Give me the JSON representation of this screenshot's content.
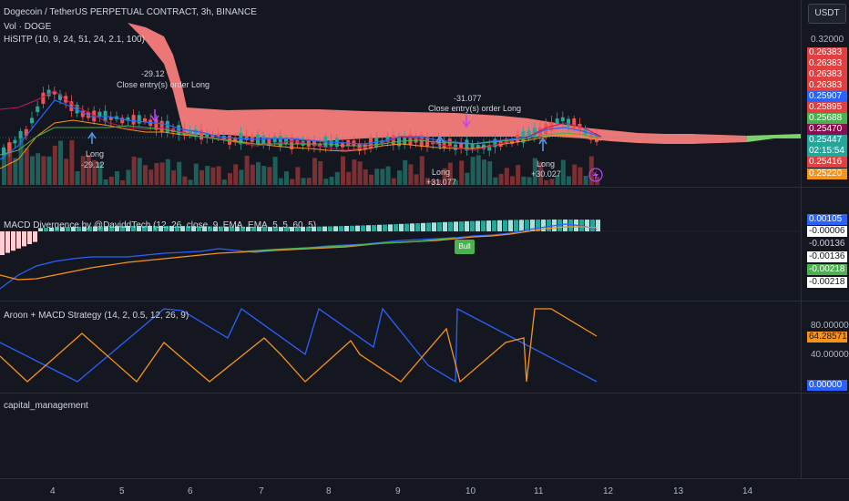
{
  "header": {
    "symbol_title": "Dogecoin / TetherUS PERPETUAL CONTRACT, 3h, BINANCE",
    "vol_label": "Vol · DOGE",
    "hsitp_label": "HiSITP (10, 9, 24, 51, 24, 2.1, 100)",
    "currency_button": "USDT"
  },
  "price_axis": {
    "top_tick": "0.32000",
    "tags": [
      {
        "text": "0.26383",
        "color": "#e04040"
      },
      {
        "text": "0.26383",
        "color": "#e04040"
      },
      {
        "text": "0.26383",
        "color": "#e04040"
      },
      {
        "text": "0.26383",
        "color": "#e04040"
      },
      {
        "text": "0.25907",
        "color": "#2962ff"
      },
      {
        "text": "0.25895",
        "color": "#e04040"
      },
      {
        "text": "0.25688",
        "color": "#4caf50"
      },
      {
        "text": "0.25470",
        "color": "#880e4f"
      },
      {
        "text": "0.25447",
        "color": "#26a69a"
      },
      {
        "text": "02:15:54",
        "color": "#26a69a"
      },
      {
        "text": "0.25416",
        "color": "#e04040"
      },
      {
        "text": "0.25220",
        "color": "#f7931a"
      }
    ]
  },
  "trades": {
    "close1_value": "-29.12",
    "close1_text": "Close entry(s) order Long",
    "long1_text": "Long",
    "long1_value": "-29.12",
    "close2_value": "-31.077",
    "close2_text": "Close entry(s) order Long",
    "long2_text": "Long",
    "long2_value": "+31.077",
    "long3_text": "Long",
    "long3_value": "+30.027"
  },
  "macd_pane": {
    "title": "MACD Divergence by @DaviddTech (12, 26, close, 9, EMA, EMA, 5, 5, 60, 5)",
    "bull_label": "Bull",
    "tags": [
      {
        "text": "0.00105",
        "color": "#2962ff",
        "fg": "#ffffff"
      },
      {
        "text": "-0.00006",
        "color": "#ffffff",
        "fg": "#131722"
      },
      {
        "text": "-0.00136",
        "color": "#141720",
        "fg": "#d1d4dc"
      },
      {
        "text": "-0.00136",
        "color": "#ffffff",
        "fg": "#131722"
      },
      {
        "text": "-0.00218",
        "color": "#4caf50",
        "fg": "#ffffff"
      },
      {
        "text": "-0.00218",
        "color": "#ffffff",
        "fg": "#131722"
      }
    ]
  },
  "aroon_pane": {
    "title": "Aroon + MACD Strategy (14, 2, 0.5, 12, 26, 9)",
    "tick_80": "80.00000",
    "tick_40": "40.00000",
    "tag_orange": "64.28571",
    "tag_blue": "0.00000"
  },
  "capital_pane": {
    "title": "capital_management"
  },
  "time_axis": {
    "labels": [
      "4",
      "5",
      "6",
      "7",
      "8",
      "9",
      "10",
      "11",
      "12",
      "13",
      "14"
    ]
  },
  "colors": {
    "background": "#141720",
    "up": "#26a69a",
    "down": "#ef5350",
    "cloud_red": "#f77c7c",
    "cloud_green": "#7ed36b",
    "aroon_blue": "#2962ff",
    "aroon_orange": "#f7931a"
  }
}
